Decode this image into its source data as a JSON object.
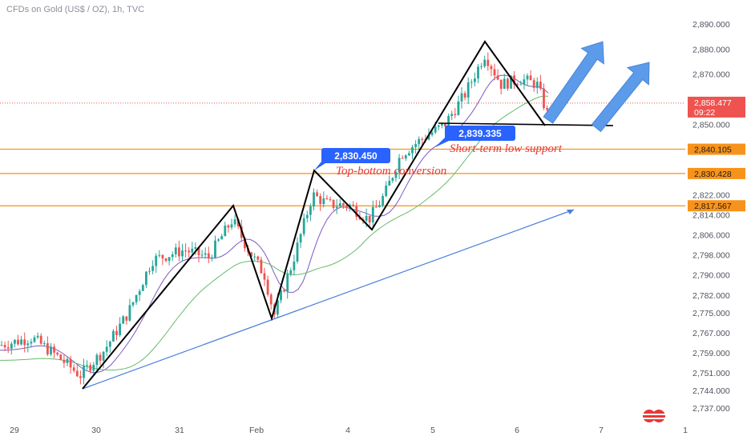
{
  "title": "CFDs on Gold (US$ / OZ), 1h, TVC",
  "colors": {
    "up": "#26a69a",
    "down": "#ef5350",
    "support_line": "#f7931a",
    "trend_line": "#4a7ede",
    "ma_fast": "#7e57c2",
    "ma_slow": "#66bb6a",
    "zigzag": "#000000",
    "callout": "#2962ff",
    "arrow_fill": "#5b9bea",
    "current_price_bg": "#ef5350",
    "annotation": "#e53935"
  },
  "chart_data": {
    "type": "candlestick",
    "symbol": "CFDs on Gold (US$ / OZ)",
    "timeframe": "1h",
    "source": "TVC",
    "ylim": [
      2733,
      2895
    ],
    "y_ticks": [
      "2,890.000",
      "2,880.000",
      "2,870.000",
      "2,858.477",
      "2,850.000",
      "2,840.105",
      "2,830.428",
      "2,822.000",
      "2,817.567",
      "2,814.000",
      "2,806.000",
      "2,798.000",
      "2,790.000",
      "2,782.000",
      "2,775.000",
      "2,767.000",
      "2,759.000",
      "2,751.000",
      "2,744.000",
      "2,737.000"
    ],
    "x_ticks": [
      "29",
      "30",
      "31",
      "Feb",
      "4",
      "5",
      "6",
      "7",
      "1"
    ],
    "current_price": {
      "value": "2,858.477",
      "countdown": "09:22"
    },
    "support_levels": [
      {
        "value": 2840.105,
        "label": "2,840.105"
      },
      {
        "value": 2830.428,
        "label": "2,830.428"
      },
      {
        "value": 2817.567,
        "label": "2,817.567"
      }
    ],
    "callouts": [
      {
        "label": "2,830.450",
        "value": 2830.45
      },
      {
        "label": "2,839.335",
        "value": 2839.335
      }
    ],
    "annotations": [
      "Short-term low support",
      "Top-bottom conversion"
    ],
    "zigzag": [
      {
        "x": "30",
        "y": 2745
      },
      {
        "x": "31",
        "y": 2817
      },
      {
        "x": "Feb",
        "y": 2773
      },
      {
        "x": "Feb",
        "y": 2830
      },
      {
        "x": "4",
        "y": 2808
      },
      {
        "x": "5",
        "y": 2882
      },
      {
        "x": "6",
        "y": 2851
      },
      {
        "x": "6",
        "y": 2851
      }
    ]
  }
}
